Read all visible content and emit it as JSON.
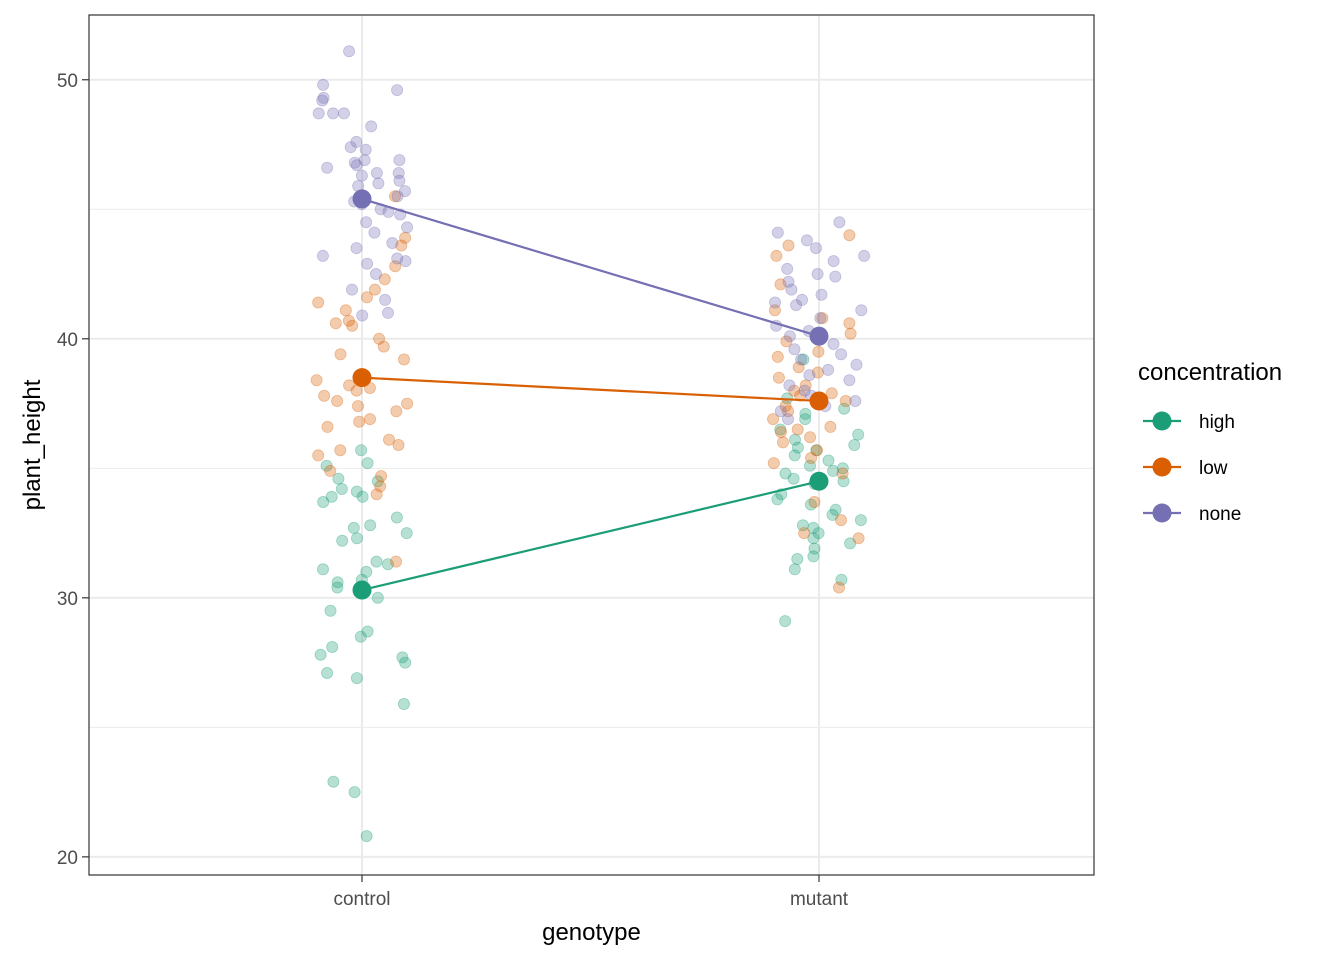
{
  "chart_data": {
    "type": "scatter",
    "title": "",
    "xlabel": "genotype",
    "ylabel": "plant_height",
    "categories": [
      "control",
      "mutant"
    ],
    "ylim": [
      19.3,
      52.5
    ],
    "yticks": [
      20,
      30,
      40,
      50
    ],
    "grid": true,
    "legend": {
      "title": "concentration",
      "placement": "right",
      "entries": [
        "high",
        "low",
        "none"
      ]
    },
    "series": [
      {
        "name": "high",
        "color": "#1B9E77",
        "means": [
          30.3,
          34.5
        ],
        "points": [
          {
            "category": "control",
            "values": [
              35.7,
              35.2,
              35.1,
              34.6,
              34.1,
              33.9,
              33.7,
              33.1,
              32.8,
              32.7,
              32.2,
              31.3,
              31.4,
              31.1,
              30.7,
              30.6,
              30.0,
              29.5,
              28.7,
              28.5,
              28.1,
              27.8,
              27.7,
              27.5,
              27.1,
              26.9,
              25.9,
              22.9,
              22.5,
              20.8,
              34.5,
              34.2,
              33.9,
              32.5,
              32.3,
              30.4,
              31.0
            ]
          },
          {
            "category": "mutant",
            "values": [
              39.2,
              37.7,
              37.3,
              37.1,
              36.9,
              36.5,
              36.3,
              36.1,
              35.9,
              35.7,
              35.5,
              35.3,
              35.1,
              35.0,
              34.9,
              34.8,
              34.6,
              34.4,
              34.0,
              33.8,
              33.6,
              33.4,
              33.2,
              33.0,
              32.8,
              32.7,
              32.5,
              32.3,
              32.1,
              31.9,
              31.6,
              31.5,
              31.1,
              30.7,
              29.1,
              35.8,
              34.5
            ]
          }
        ]
      },
      {
        "name": "low",
        "color": "#D95F02",
        "means": [
          38.5,
          37.6
        ],
        "points": [
          {
            "category": "control",
            "values": [
              45.5,
              43.9,
              43.6,
              42.8,
              42.3,
              41.9,
              41.6,
              41.4,
              41.1,
              40.7,
              40.6,
              40.5,
              40.0,
              39.7,
              39.4,
              39.2,
              38.4,
              38.2,
              38.1,
              38.0,
              37.8,
              37.5,
              37.4,
              37.2,
              36.9,
              36.8,
              36.6,
              36.1,
              35.9,
              35.7,
              35.5,
              34.9,
              34.7,
              34.3,
              34.0,
              31.4,
              37.6
            ]
          },
          {
            "category": "mutant",
            "values": [
              44.0,
              43.6,
              43.2,
              42.1,
              41.1,
              40.8,
              40.6,
              40.2,
              39.9,
              39.5,
              39.3,
              38.9,
              38.7,
              38.5,
              38.2,
              38.0,
              37.8,
              37.6,
              37.4,
              37.2,
              36.9,
              36.6,
              36.4,
              36.2,
              36.0,
              35.7,
              35.4,
              35.2,
              34.8,
              33.7,
              33.0,
              32.5,
              32.3,
              30.4,
              37.9,
              36.5
            ]
          }
        ]
      },
      {
        "name": "none",
        "color": "#7570B3",
        "means": [
          45.4,
          40.1
        ],
        "points": [
          {
            "category": "control",
            "values": [
              51.1,
              49.8,
              49.6,
              49.3,
              49.2,
              48.7,
              48.7,
              48.7,
              48.2,
              47.6,
              47.4,
              47.3,
              46.9,
              46.9,
              46.8,
              46.6,
              46.4,
              46.4,
              46.3,
              46.1,
              46.0,
              45.9,
              45.7,
              45.5,
              45.3,
              45.2,
              45.0,
              44.9,
              44.8,
              44.5,
              44.3,
              44.1,
              43.7,
              43.5,
              43.2,
              43.0,
              42.9,
              42.5,
              41.9,
              41.5,
              41.0,
              40.9,
              46.7,
              43.1
            ]
          },
          {
            "category": "mutant",
            "values": [
              44.5,
              44.1,
              43.8,
              43.5,
              43.2,
              43.0,
              42.7,
              42.4,
              42.2,
              41.9,
              41.7,
              41.5,
              41.4,
              41.1,
              40.8,
              40.5,
              40.3,
              40.1,
              39.8,
              39.6,
              39.4,
              39.2,
              39.0,
              38.8,
              38.6,
              38.4,
              38.2,
              38.0,
              37.8,
              37.6,
              37.4,
              37.2,
              36.9,
              42.5,
              41.3
            ]
          }
        ]
      }
    ]
  }
}
